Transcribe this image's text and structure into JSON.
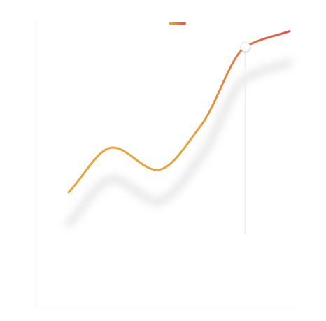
{
  "chart_data": {
    "type": "line",
    "title": "",
    "xlabel": "",
    "ylabel": "",
    "grid": false,
    "legend_position": "top-center",
    "series": [
      {
        "name": "",
        "x": [
          0,
          1,
          2,
          3,
          4,
          5
        ],
        "y": [
          25,
          45,
          35,
          55,
          90,
          97
        ]
      }
    ],
    "highlighted_point": {
      "series": 0,
      "x": 4,
      "y": 90
    },
    "xlim": [
      0,
      5
    ],
    "ylim": [
      0,
      100
    ],
    "colors": {
      "gradient_start": "#E8A33D",
      "gradient_end": "#E0504A",
      "shadow": "#CFCFCF",
      "marker_fill": "#FFFFFF",
      "marker_stroke": "#E5E5E5",
      "guide_line": "#EEEEEE"
    }
  }
}
